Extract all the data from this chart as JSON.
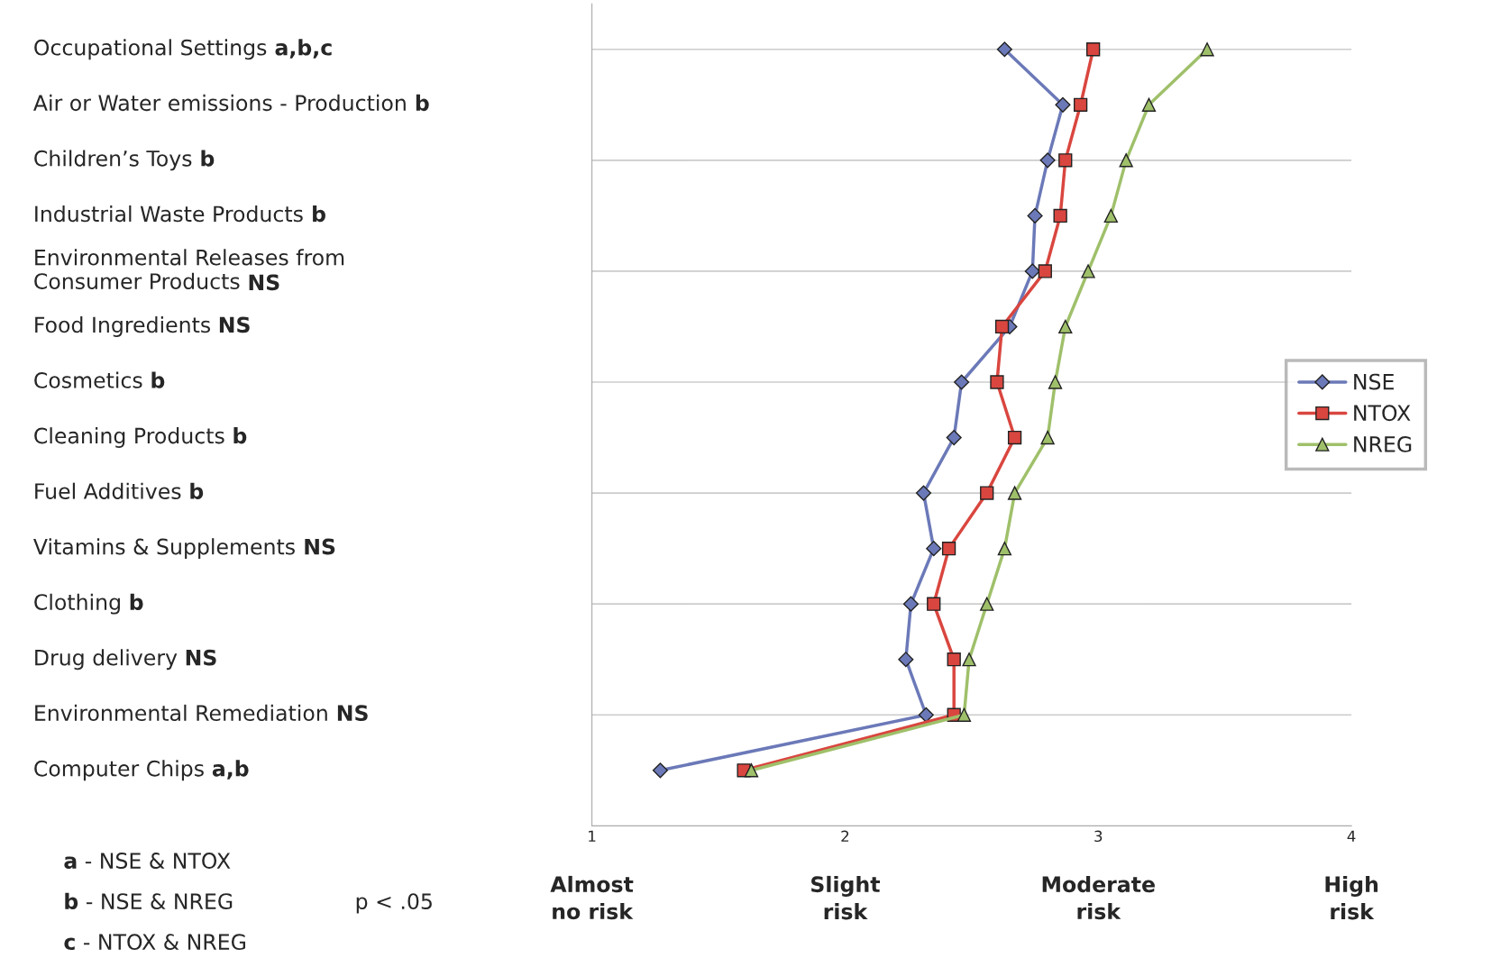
{
  "chart_data": {
    "type": "line",
    "orientation": "horizontal",
    "categories": [
      "Occupational Settings a,b,c",
      "Air or Water emissions - Production b",
      "Children’s Toys b",
      "Industrial Waste Products b",
      "Environmental Releases from\nConsumer Products NS",
      "Food Ingredients NS",
      "Cosmetics b",
      "Cleaning Products b",
      "Fuel Additives b",
      "Vitamins & Supplements NS",
      "Clothing b",
      "Drug delivery NS",
      "Environmental Remediation NS",
      "Computer Chips a,b"
    ],
    "series": [
      {
        "name": "NSE",
        "color": "#6b79b8",
        "marker": "diamond",
        "values": [
          2.63,
          2.86,
          2.8,
          2.75,
          2.74,
          2.65,
          2.46,
          2.43,
          2.31,
          2.35,
          2.26,
          2.24,
          2.32,
          1.27
        ]
      },
      {
        "name": "NTOX",
        "color": "#d9463f",
        "marker": "square",
        "values": [
          2.98,
          2.93,
          2.87,
          2.85,
          2.79,
          2.62,
          2.6,
          2.67,
          2.56,
          2.41,
          2.35,
          2.43,
          2.43,
          1.6
        ]
      },
      {
        "name": "NREG",
        "color": "#9fc06a",
        "marker": "triangle",
        "values": [
          3.43,
          3.2,
          3.11,
          3.05,
          2.96,
          2.87,
          2.83,
          2.8,
          2.67,
          2.63,
          2.56,
          2.49,
          2.47,
          1.63
        ]
      }
    ],
    "xlim": [
      1,
      4
    ],
    "xticks": [
      1,
      2,
      3,
      4
    ],
    "grid": "y",
    "legend": "right",
    "annotations": [
      "Almost\nno risk",
      "Slight\nrisk",
      "Moderate\nrisk",
      "High\nrisk",
      "a - NSE & NTOX",
      "b - NSE & NREG",
      "c - NTOX & NREG",
      "p < .05"
    ]
  }
}
